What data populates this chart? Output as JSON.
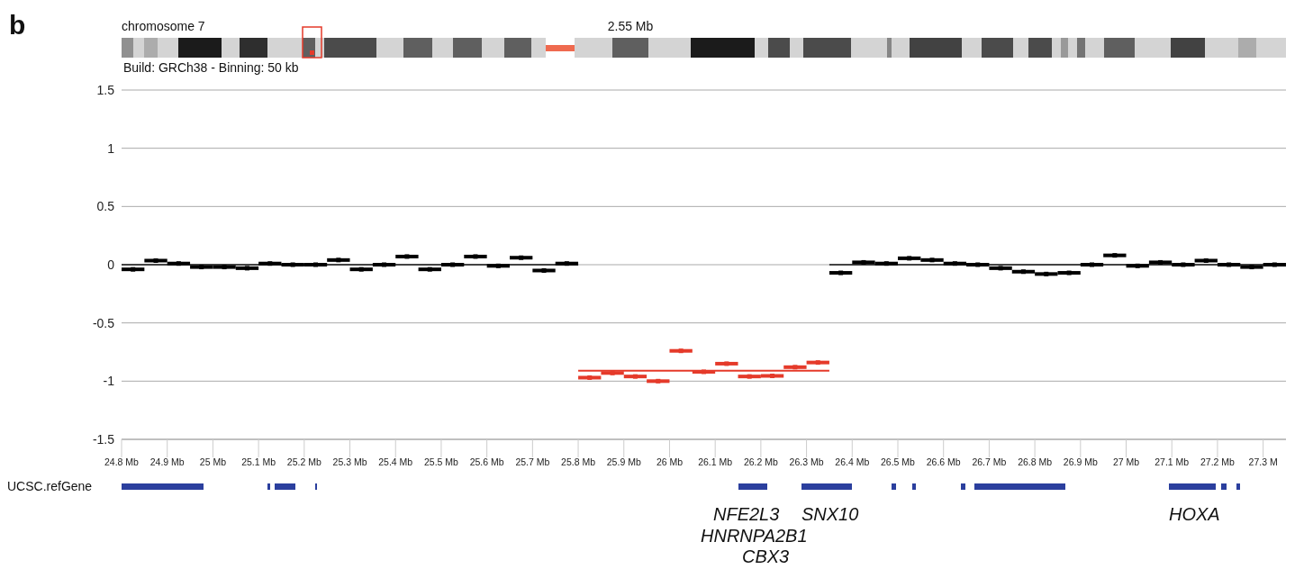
{
  "chart_data": {
    "type": "scatter",
    "annotations": [
      "b",
      "chromosome 7",
      "2.55 Mb",
      "Build: GRCh38 - Binning: 50 kb",
      "UCSC.refGene",
      "NFE2L3",
      "SNX10",
      "HNRNPA2B1",
      "CBX3",
      "HOXA"
    ],
    "series": [
      {
        "type": "line",
        "marker": "none",
        "color": "#444444",
        "x": [
          24.8,
          25.8
        ],
        "values": [
          0,
          0
        ]
      },
      {
        "type": "line",
        "marker": "none",
        "color": "#e53a2a",
        "x": [
          25.8,
          26.35
        ],
        "values": [
          -0.91,
          -0.91
        ]
      },
      {
        "type": "line",
        "marker": "none",
        "color": "#444444",
        "x": [
          26.35,
          27.35
        ],
        "values": [
          0,
          0
        ]
      },
      {
        "color": "#000000",
        "x": [
          24.825,
          24.875,
          24.925,
          24.975,
          25.025,
          25.075,
          25.125,
          25.175,
          25.225,
          25.275,
          25.325,
          25.375,
          25.425,
          25.475,
          25.525,
          25.575,
          25.625,
          25.675,
          25.725,
          25.775
        ],
        "values": [
          -0.04,
          0.035,
          0.01,
          -0.02,
          -0.02,
          -0.03,
          0.01,
          0,
          0,
          0.04,
          -0.04,
          0,
          0.07,
          -0.04,
          0,
          0.07,
          -0.01,
          0.06,
          -0.05,
          0.01
        ],
        "xerrors": [
          0.025,
          0.025,
          0.025,
          0.025,
          0.025,
          0.025,
          0.025,
          0.025,
          0.025,
          0.025,
          0.025,
          0.025,
          0.025,
          0.025,
          0.025,
          0.025,
          0.025,
          0.025,
          0.025,
          0.025
        ]
      },
      {
        "color": "#e53a2a",
        "x": [
          25.825,
          25.875,
          25.925,
          25.975,
          26.025,
          26.075,
          26.125,
          26.175,
          26.225,
          26.275,
          26.325
        ],
        "values": [
          -0.97,
          -0.93,
          -0.96,
          -1.0,
          -0.74,
          -0.92,
          -0.85,
          -0.96,
          -0.955,
          -0.88,
          -0.84
        ],
        "xerrors": [
          0.025,
          0.025,
          0.025,
          0.025,
          0.025,
          0.025,
          0.025,
          0.025,
          0.025,
          0.025,
          0.025
        ]
      },
      {
        "color": "#000000",
        "x": [
          26.375,
          26.425,
          26.475,
          26.525,
          26.575,
          26.625,
          26.675,
          26.725,
          26.775,
          26.825,
          26.875,
          26.925,
          26.975,
          27.025,
          27.075,
          27.125,
          27.175,
          27.225,
          27.275,
          27.325
        ],
        "values": [
          -0.07,
          0.02,
          0.01,
          0.055,
          0.04,
          0.01,
          0,
          -0.03,
          -0.06,
          -0.08,
          -0.07,
          0,
          0.08,
          -0.01,
          0.02,
          0,
          0.035,
          0,
          -0.02,
          0
        ],
        "xerrors": [
          0.025,
          0.025,
          0.025,
          0.025,
          0.025,
          0.025,
          0.025,
          0.025,
          0.025,
          0.025,
          0.025,
          0.025,
          0.025,
          0.025,
          0.025,
          0.025,
          0.025,
          0.025,
          0.025,
          0.025
        ]
      }
    ],
    "xlim": [
      24.8,
      27.35
    ],
    "xticks": [
      {
        "value": 24.8,
        "label": "24.8 Mb"
      },
      {
        "value": 24.9,
        "label": "24.9 Mb"
      },
      {
        "value": 25.0,
        "label": "25 Mb"
      },
      {
        "value": 25.1,
        "label": "25.1 Mb"
      },
      {
        "value": 25.2,
        "label": "25.2 Mb"
      },
      {
        "value": 25.3,
        "label": "25.3 Mb"
      },
      {
        "value": 25.4,
        "label": "25.4 Mb"
      },
      {
        "value": 25.5,
        "label": "25.5 Mb"
      },
      {
        "value": 25.6,
        "label": "25.6 Mb"
      },
      {
        "value": 25.7,
        "label": "25.7 Mb"
      },
      {
        "value": 25.8,
        "label": "25.8 Mb"
      },
      {
        "value": 25.9,
        "label": "25.9 Mb"
      },
      {
        "value": 26.0,
        "label": "26 Mb"
      },
      {
        "value": 26.1,
        "label": "26.1 Mb"
      },
      {
        "value": 26.2,
        "label": "26.2 Mb"
      },
      {
        "value": 26.3,
        "label": "26.3 Mb"
      },
      {
        "value": 26.4,
        "label": "26.4 Mb"
      },
      {
        "value": 26.5,
        "label": "26.5 Mb"
      },
      {
        "value": 26.6,
        "label": "26.6 Mb"
      },
      {
        "value": 26.7,
        "label": "26.7 Mb"
      },
      {
        "value": 26.8,
        "label": "26.8 Mb"
      },
      {
        "value": 26.9,
        "label": "26.9 Mb"
      },
      {
        "value": 27.0,
        "label": "27 Mb"
      },
      {
        "value": 27.1,
        "label": "27.1 Mb"
      },
      {
        "value": 27.2,
        "label": "27.2 Mb"
      },
      {
        "value": 27.3,
        "label": "27.3 M"
      }
    ],
    "ylim": [
      -1.5,
      1.5
    ],
    "yticks": [
      -1.5,
      -1,
      -0.5,
      0,
      0.5,
      1,
      1.5
    ],
    "grid": "y",
    "marker": "square"
  }
}
